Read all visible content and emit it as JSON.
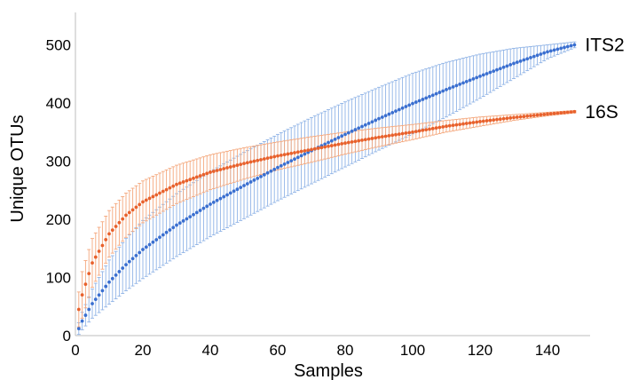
{
  "chart_data": {
    "type": "line",
    "title": "",
    "xlabel": "Samples",
    "ylabel": "Unique OTUs",
    "xlim": [
      0,
      150
    ],
    "ylim": [
      0,
      520
    ],
    "xticks": [
      0,
      20,
      40,
      60,
      80,
      100,
      120,
      140
    ],
    "yticks": [
      0,
      100,
      200,
      300,
      400,
      500
    ],
    "grid": false,
    "series": [
      {
        "name": "ITS2",
        "color": "#3a6fd0",
        "error_color": "#8fb3e6",
        "marker": "circle",
        "label_position": "end",
        "x": [
          1,
          2,
          5,
          10,
          15,
          20,
          30,
          40,
          50,
          60,
          70,
          80,
          90,
          100,
          110,
          120,
          130,
          140,
          148
        ],
        "values": [
          12,
          25,
          55,
          92,
          122,
          148,
          190,
          226,
          258,
          289,
          318,
          346,
          373,
          399,
          423,
          446,
          468,
          488,
          500
        ],
        "err": [
          10,
          15,
          25,
          38,
          45,
          50,
          54,
          56,
          57,
          57,
          57,
          56,
          54,
          52,
          47,
          38,
          26,
          12,
          5
        ]
      },
      {
        "name": "16S",
        "color": "#e8612c",
        "error_color": "#f4a77c",
        "marker": "circle",
        "label_position": "end",
        "x": [
          1,
          2,
          5,
          10,
          15,
          20,
          30,
          40,
          50,
          60,
          70,
          80,
          90,
          100,
          110,
          120,
          130,
          140,
          148
        ],
        "values": [
          45,
          70,
          125,
          175,
          207,
          230,
          260,
          281,
          296,
          309,
          320,
          331,
          341,
          350,
          360,
          368,
          375,
          381,
          385
        ],
        "err": [
          30,
          40,
          42,
          40,
          38,
          36,
          33,
          30,
          27,
          24,
          22,
          19,
          16,
          13,
          10,
          8,
          5,
          3,
          2
        ]
      }
    ]
  }
}
